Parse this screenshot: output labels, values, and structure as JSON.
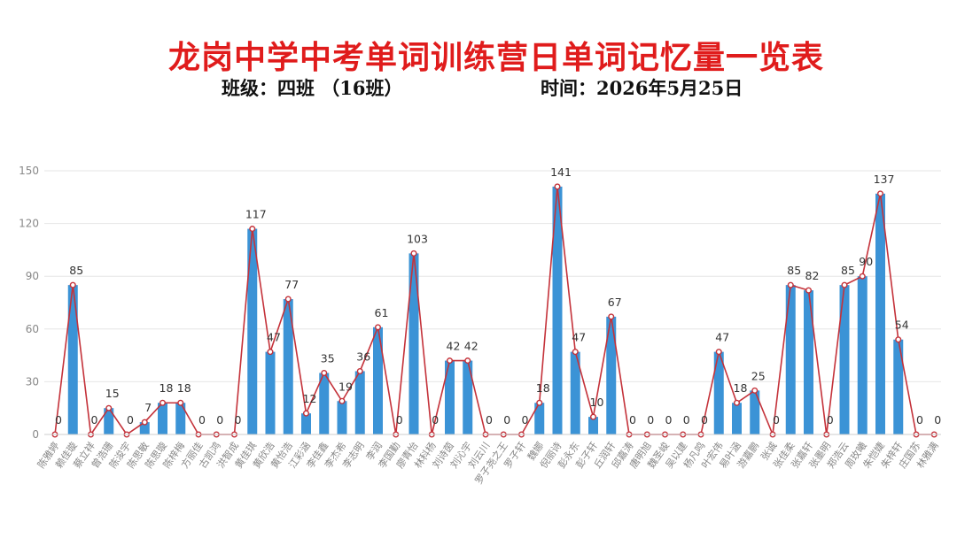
{
  "header": {
    "title": "龙岗中学中考单词训练营日单词记忆量一览表",
    "class_text": "班级：四班 （16班）",
    "time_text": "时间：2026年5月25日"
  },
  "colors": {
    "title": "#e01c1c",
    "bar": "#3b93d6",
    "line": "#c4323a",
    "grid": "#e6e6e6"
  },
  "chart_data": {
    "type": "bar",
    "overlay": "line",
    "ylim": [
      0,
      150
    ],
    "yticks": [
      0,
      30,
      60,
      90,
      120,
      150
    ],
    "grid": true,
    "categories": [
      "陈雅婷",
      "赖佳璇",
      "蔡立祥",
      "曾浩珊",
      "陈浚宇",
      "陈思敏",
      "陈思璇",
      "陈梓梅",
      "方丽佳",
      "古凯鸿",
      "洪智成",
      "黄佳琪",
      "黄欣浩",
      "黄怡浩",
      "江彩涵",
      "李佳鑫",
      "李杰希",
      "李志明",
      "李润",
      "李国勤",
      "廖青怡",
      "林科杨",
      "刘诗茵",
      "刘沁宇",
      "刘云川",
      "罗子尧之王",
      "罗子轩",
      "魏娜",
      "倪丽诗",
      "彭永东",
      "彭子轩",
      "丘润轩",
      "邱嘉涛",
      "唐明旭",
      "魏圣峻",
      "吴以建",
      "杨凡鸣",
      "叶宏伟",
      "易叶涵",
      "游嘉鹏",
      "张诚",
      "张佳柔",
      "张嘉轩",
      "张墨明",
      "郑浩云",
      "周玫曦",
      "朱恺婕",
      "朱梓轩",
      "庄国苏",
      "林雅满"
    ],
    "values": [
      0,
      85,
      0,
      15,
      0,
      7,
      18,
      18,
      0,
      0,
      0,
      117,
      47,
      77,
      12,
      35,
      19,
      36,
      61,
      0,
      103,
      0,
      42,
      42,
      0,
      0,
      0,
      18,
      141,
      47,
      10,
      67,
      0,
      0,
      0,
      0,
      0,
      47,
      18,
      25,
      0,
      85,
      82,
      0,
      85,
      90,
      137,
      54,
      0,
      0
    ]
  }
}
